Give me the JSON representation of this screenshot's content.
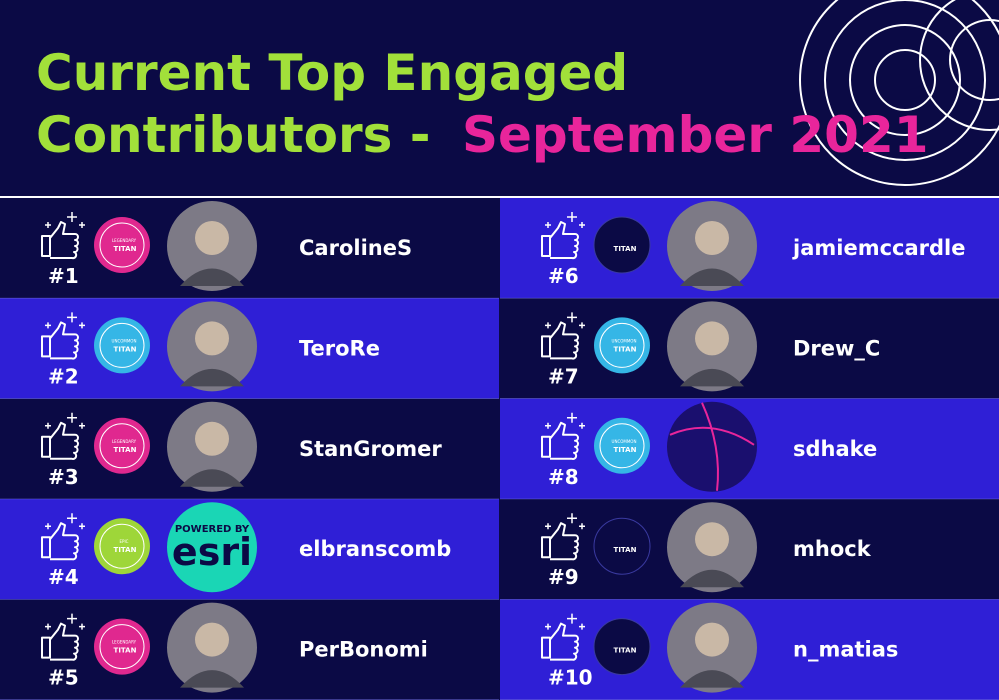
{
  "title": {
    "line1": "Current Top Engaged",
    "line2_prefix": "Contributors -",
    "line2_highlight": "September 2021"
  },
  "contributors": [
    {
      "rank": "#1",
      "name": "CarolineS",
      "badge": {
        "tier": "LEGENDARY",
        "level": "TITAN"
      }
    },
    {
      "rank": "#2",
      "name": "TeroRe",
      "badge": {
        "tier": "UNCOMMON",
        "level": "TITAN"
      }
    },
    {
      "rank": "#3",
      "name": "StanGromer",
      "badge": {
        "tier": "LEGENDARY",
        "level": "TITAN"
      }
    },
    {
      "rank": "#4",
      "name": "elbranscomb",
      "badge": {
        "tier": "EPIC",
        "level": "TITAN"
      },
      "avatar_text": [
        "POWERED BY",
        "esri"
      ]
    },
    {
      "rank": "#5",
      "name": "PerBonomi",
      "badge": {
        "tier": "LEGENDARY",
        "level": "TITAN"
      }
    },
    {
      "rank": "#6",
      "name": "jamiemccardle",
      "badge": {
        "level": "TITAN"
      }
    },
    {
      "rank": "#7",
      "name": "Drew_C",
      "badge": {
        "tier": "UNCOMMON",
        "level": "TITAN"
      }
    },
    {
      "rank": "#8",
      "name": "sdhake",
      "badge": {
        "tier": "UNCOMMON",
        "level": "TITAN"
      }
    },
    {
      "rank": "#9",
      "name": "mhock",
      "badge": {
        "level": "TITAN"
      }
    },
    {
      "rank": "#10",
      "name": "n_matias",
      "badge": {
        "level": "TITAN"
      }
    }
  ]
}
